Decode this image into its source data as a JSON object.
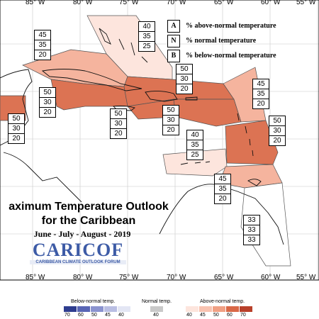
{
  "map": {
    "top_lon_labels": [
      "85° W",
      "80° W",
      "75° W",
      "70° W",
      "65° W",
      "60° W",
      "55° W"
    ],
    "bottom_lon_labels": [
      "85° W",
      "80° W",
      "75° W",
      "70° W",
      "65° W",
      "60° W",
      "55° W"
    ],
    "title_line1": "aximum Temperature Outlook",
    "title_line2": "for the Caribbean",
    "subtitle": "June - July - August - 2019",
    "logo_text": "CARICOF",
    "logo_subtext": "CARIBBEAN CLIMATE OUTLOOK FORUM",
    "key": [
      {
        "letter": "A",
        "text": "% above-normal temperature"
      },
      {
        "letter": "N",
        "text": "% normal temperature"
      },
      {
        "letter": "B",
        "text": "% below-normal temperature"
      }
    ],
    "regions": [
      {
        "name": "bahamas",
        "probs": [
          "40",
          "35",
          "25"
        ],
        "color": "#fde5dd"
      },
      {
        "name": "belize-yucatan",
        "probs": [
          "45",
          "35",
          "20"
        ],
        "color": "#f5b49e"
      },
      {
        "name": "cuba-west",
        "probs": [
          "50",
          "30",
          "20"
        ],
        "color": "#dc7353"
      },
      {
        "name": "turks-caicos",
        "probs": [
          "50",
          "30",
          "20"
        ],
        "color": "#dc7353"
      },
      {
        "name": "leeward-north",
        "probs": [
          "45",
          "35",
          "20"
        ],
        "color": "#f5b49e"
      },
      {
        "name": "belize",
        "probs": [
          "50",
          "30",
          "20"
        ],
        "color": "#dc7353"
      },
      {
        "name": "jamaica",
        "probs": [
          "50",
          "30",
          "20"
        ],
        "color": "#dc7353"
      },
      {
        "name": "hispaniola",
        "probs": [
          "50",
          "30",
          "20"
        ],
        "color": "#dc7353"
      },
      {
        "name": "windward",
        "probs": [
          "50",
          "30",
          "20"
        ],
        "color": "#dc7353"
      },
      {
        "name": "abc-islands",
        "probs": [
          "40",
          "35",
          "25"
        ],
        "color": "#fde5dd"
      },
      {
        "name": "trinidad",
        "probs": [
          "45",
          "35",
          "20"
        ],
        "color": "#f5b49e"
      },
      {
        "name": "guianas",
        "probs": [
          "33",
          "33",
          "33"
        ],
        "color": "#ffffff"
      }
    ],
    "legend": {
      "below_label": "Below-normal temp.",
      "normal_label": "Normal temp.",
      "above_label": "Above-normal temp.",
      "below_ticks": [
        "70",
        "60",
        "50",
        "45",
        "40"
      ],
      "normal_ticks": [
        "40"
      ],
      "above_ticks": [
        "40",
        "45",
        "50",
        "60",
        "70"
      ],
      "below_colors": [
        "#2e3d8f",
        "#5865b5",
        "#8a93cf",
        "#b9bee3",
        "#e3e6f4"
      ],
      "normal_color": "#c9c9c9",
      "above_colors": [
        "#fde5dd",
        "#f8c3b1",
        "#f0a084",
        "#d96847",
        "#b8402a"
      ]
    }
  }
}
